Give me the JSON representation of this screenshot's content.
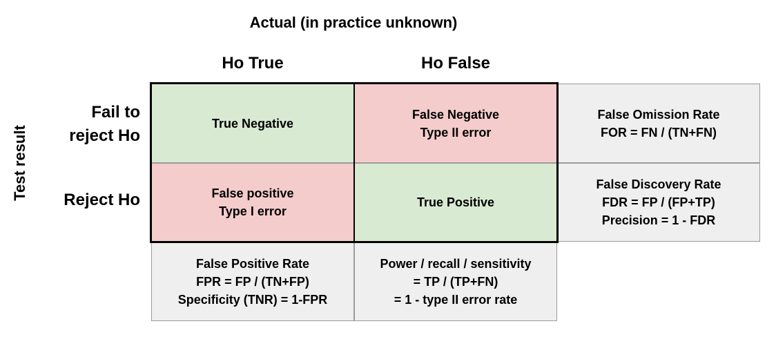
{
  "header": {
    "actual": "Actual (in practice unknown)",
    "columns": [
      "Ho True",
      "Ho False"
    ]
  },
  "side_label": "Test result",
  "rows": [
    {
      "label_lines": [
        "Fail to",
        "reject Ho"
      ]
    },
    {
      "label_lines": [
        "Reject Ho"
      ]
    }
  ],
  "matrix": {
    "true_negative": [
      "True Negative"
    ],
    "false_negative": [
      "False Negative",
      "Type II error"
    ],
    "false_positive": [
      "False positive",
      "Type I error"
    ],
    "true_positive": [
      "True Positive"
    ]
  },
  "row_metrics": {
    "for": [
      "False Omission Rate",
      "FOR = FN / (TN+FN)"
    ],
    "fdr": [
      "False Discovery Rate",
      "FDR = FP / (FP+TP)",
      "Precision = 1 - FDR"
    ]
  },
  "col_metrics": {
    "fpr": [
      "False Positive Rate",
      "FPR = FP / (TN+FP)",
      "Specificity (TNR) = 1-FPR"
    ],
    "power": [
      "Power / recall / sensitivity",
      "= TP / (TP+FN)",
      "= 1 - type II error rate"
    ]
  },
  "colors": {
    "correct": "#d9ead3",
    "error": "#f4cccc",
    "metric": "#efefef"
  }
}
